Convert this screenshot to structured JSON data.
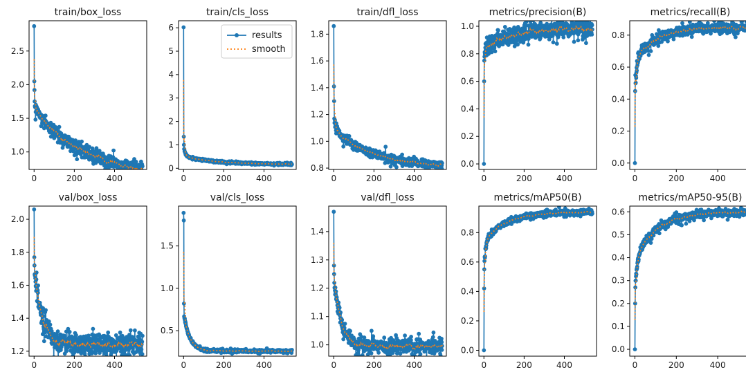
{
  "colors": {
    "results": "#1f77b4",
    "smooth": "#ff7f0e",
    "axis": "#000000",
    "background": "#ffffff"
  },
  "legend": {
    "results_label": "results",
    "smooth_label": "smooth",
    "location": "top-right of second panel"
  },
  "chart_data": [
    {
      "type": "line",
      "title": "train/box_loss",
      "xlabel": "",
      "ylabel": "",
      "xlim": [
        -25,
        560
      ],
      "ylim": [
        0.74,
        2.95
      ],
      "xticks": [
        0,
        200,
        400
      ],
      "yticks": [
        1.0,
        1.5,
        2.0,
        2.5
      ],
      "n_epochs": 540,
      "start_values": [
        2.87,
        2.05,
        1.92,
        1.75
      ],
      "curve": {
        "asymptote": 0.62,
        "amplitude": 1.0,
        "tau": 260,
        "fast_amplitude": 0.12,
        "fast_tau": 12
      },
      "noise": 0.05,
      "grid": false,
      "series": [
        "results",
        "smooth"
      ]
    },
    {
      "type": "line",
      "title": "train/cls_loss",
      "xlabel": "",
      "ylabel": "",
      "xlim": [
        -25,
        560
      ],
      "ylim": [
        -0.05,
        6.3
      ],
      "xticks": [
        0,
        200,
        400
      ],
      "yticks": [
        0,
        1,
        2,
        3,
        4,
        5,
        6
      ],
      "n_epochs": 540,
      "start_values": [
        6.02,
        1.35,
        1.0
      ],
      "curve": {
        "asymptote": 0.17,
        "amplitude": 0.35,
        "tau": 150,
        "fast_amplitude": 0.45,
        "fast_tau": 8
      },
      "noise": 0.02,
      "grid": false,
      "series": [
        "results",
        "smooth"
      ],
      "legend": true
    },
    {
      "type": "line",
      "title": "train/dfl_loss",
      "xlabel": "",
      "ylabel": "",
      "xlim": [
        -25,
        560
      ],
      "ylim": [
        0.79,
        1.9
      ],
      "xticks": [
        0,
        200,
        400
      ],
      "yticks": [
        0.8,
        1.0,
        1.2,
        1.4,
        1.6,
        1.8
      ],
      "n_epochs": 540,
      "start_values": [
        1.86,
        1.41,
        1.3
      ],
      "curve": {
        "asymptote": 0.8,
        "amplitude": 0.28,
        "tau": 210,
        "fast_amplitude": 0.12,
        "fast_tau": 10
      },
      "noise": 0.015,
      "grid": false,
      "series": [
        "results",
        "smooth"
      ]
    },
    {
      "type": "line",
      "title": "metrics/precision(B)",
      "xlabel": "",
      "ylabel": "",
      "xlim": [
        -25,
        560
      ],
      "ylim": [
        -0.04,
        1.04
      ],
      "xticks": [
        0,
        200,
        400
      ],
      "yticks": [
        0.0,
        0.2,
        0.4,
        0.6,
        0.8,
        1.0
      ],
      "n_epochs": 540,
      "start_values": [
        0.0,
        0.6,
        0.75
      ],
      "curve": {
        "asymptote": 0.98,
        "amplitude": -0.14,
        "tau": 120,
        "fast_amplitude": -0.1,
        "fast_tau": 6
      },
      "noise": 0.03,
      "grid": false,
      "series": [
        "results",
        "smooth"
      ]
    },
    {
      "type": "line",
      "title": "metrics/recall(B)",
      "xlabel": "",
      "ylabel": "",
      "xlim": [
        -25,
        560
      ],
      "ylim": [
        -0.04,
        0.89
      ],
      "xticks": [
        0,
        200,
        400
      ],
      "yticks": [
        0.0,
        0.2,
        0.4,
        0.6,
        0.8
      ],
      "n_epochs": 540,
      "start_values": [
        0.0,
        0.45,
        0.55
      ],
      "curve": {
        "asymptote": 0.85,
        "amplitude": -0.2,
        "tau": 110,
        "fast_amplitude": -0.22,
        "fast_tau": 8
      },
      "noise": 0.015,
      "grid": false,
      "series": [
        "results",
        "smooth"
      ]
    },
    {
      "type": "line",
      "title": "val/box_loss",
      "xlabel": "",
      "ylabel": "",
      "xlim": [
        -25,
        560
      ],
      "ylim": [
        1.17,
        2.08
      ],
      "xticks": [
        0,
        200,
        400
      ],
      "yticks": [
        1.2,
        1.4,
        1.6,
        1.8,
        2.0
      ],
      "n_epochs": 540,
      "start_values": [
        2.06,
        1.77,
        1.72
      ],
      "curve": {
        "asymptote": 1.24,
        "amplitude": 0.45,
        "tau": 40,
        "fast_amplitude": 0.0,
        "fast_tau": 5
      },
      "noise": 0.03,
      "grid": false,
      "series": [
        "results",
        "smooth"
      ]
    },
    {
      "type": "line",
      "title": "val/cls_loss",
      "xlabel": "",
      "ylabel": "",
      "xlim": [
        -25,
        560
      ],
      "ylim": [
        0.2,
        1.97
      ],
      "xticks": [
        0,
        200,
        400
      ],
      "yticks": [
        0.5,
        1.0,
        1.5
      ],
      "n_epochs": 540,
      "start_values": [
        1.89,
        1.8,
        0.82
      ],
      "curve": {
        "asymptote": 0.26,
        "amplitude": 0.45,
        "tau": 30,
        "fast_amplitude": 0.0,
        "fast_tau": 5
      },
      "noise": 0.008,
      "grid": false,
      "series": [
        "results",
        "smooth"
      ]
    },
    {
      "type": "line",
      "title": "val/dfl_loss",
      "xlabel": "",
      "ylabel": "",
      "xlim": [
        -25,
        560
      ],
      "ylim": [
        0.96,
        1.49
      ],
      "xticks": [
        0,
        200,
        400
      ],
      "yticks": [
        1.0,
        1.1,
        1.2,
        1.3,
        1.4
      ],
      "n_epochs": 540,
      "start_values": [
        1.47,
        1.28,
        1.25
      ],
      "curve": {
        "asymptote": 0.995,
        "amplitude": 0.25,
        "tau": 35,
        "fast_amplitude": 0.0,
        "fast_tau": 5
      },
      "noise": 0.012,
      "grid": false,
      "series": [
        "results",
        "smooth"
      ]
    },
    {
      "type": "line",
      "title": "metrics/mAP50(B)",
      "xlabel": "",
      "ylabel": "",
      "xlim": [
        -25,
        560
      ],
      "ylim": [
        -0.04,
        0.98
      ],
      "xticks": [
        0,
        200,
        400
      ],
      "yticks": [
        0.0,
        0.2,
        0.4,
        0.6,
        0.8
      ],
      "n_epochs": 540,
      "start_values": [
        0.0,
        0.42,
        0.55
      ],
      "curve": {
        "asymptote": 0.94,
        "amplitude": -0.2,
        "tau": 110,
        "fast_amplitude": -0.2,
        "fast_tau": 8
      },
      "noise": 0.008,
      "grid": false,
      "series": [
        "results",
        "smooth"
      ]
    },
    {
      "type": "line",
      "title": "metrics/mAP50-95(B)",
      "xlabel": "",
      "ylabel": "",
      "xlim": [
        -25,
        560
      ],
      "ylim": [
        -0.03,
        0.625
      ],
      "xticks": [
        0,
        200,
        400
      ],
      "yticks": [
        0.0,
        0.1,
        0.2,
        0.3,
        0.4,
        0.5,
        0.6
      ],
      "n_epochs": 540,
      "start_values": [
        0.0,
        0.2,
        0.27
      ],
      "curve": {
        "asymptote": 0.6,
        "amplitude": -0.2,
        "tau": 110,
        "fast_amplitude": -0.15,
        "fast_tau": 10
      },
      "noise": 0.008,
      "grid": false,
      "series": [
        "results",
        "smooth"
      ]
    }
  ]
}
